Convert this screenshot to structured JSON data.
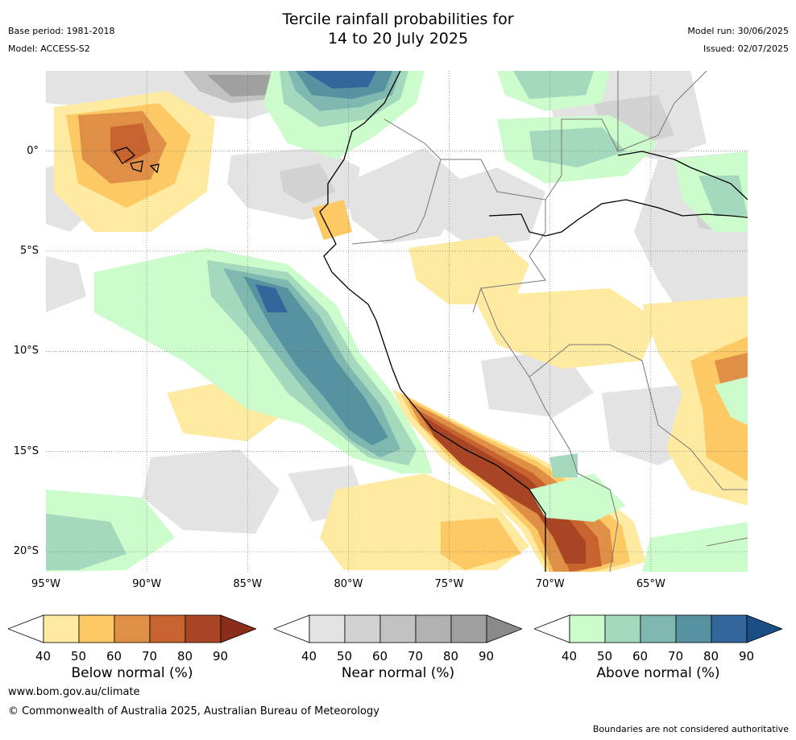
{
  "header": {
    "title_line1": "Tercile rainfall probabilities for",
    "title_line2": "14 to 20 July 2025",
    "base_period": "Base period: 1981-2018",
    "model": "Model: ACCESS-S2",
    "model_run": "Model run: 30/06/2025",
    "issued": "Issued: 02/07/2025"
  },
  "map": {
    "lat_labels": [
      "0°",
      "5°S",
      "10°S",
      "15°S",
      "20°S"
    ],
    "lon_labels": [
      "95°W",
      "90°W",
      "85°W",
      "80°W",
      "75°W",
      "70°W",
      "65°W"
    ],
    "lat_values": [
      0,
      -5,
      -10,
      -15,
      -20
    ],
    "lon_values": [
      -95,
      -90,
      -85,
      -80,
      -75,
      -70,
      -65
    ],
    "extent": {
      "lon": [
        -95,
        -60.2
      ],
      "lat": [
        -21,
        4
      ]
    },
    "colors": {
      "coast": "#000000",
      "borders": "#777777",
      "grid": "#666666"
    }
  },
  "legends": [
    {
      "title": "Below normal (%)",
      "ticks": [
        "40",
        "50",
        "60",
        "70",
        "80",
        "90"
      ],
      "colors": [
        "#ffffff",
        "#feeaa0",
        "#fdc965",
        "#e08f46",
        "#c8632f",
        "#a84525",
        "#8a2d1a"
      ]
    },
    {
      "title": "Near normal (%)",
      "ticks": [
        "40",
        "50",
        "60",
        "70",
        "80",
        "90"
      ],
      "colors": [
        "#ffffff",
        "#e3e3e3",
        "#d2d2d2",
        "#c2c2c2",
        "#b1b1b1",
        "#a0a0a0",
        "#8a8a8a"
      ]
    },
    {
      "title": "Above normal (%)",
      "ticks": [
        "40",
        "50",
        "60",
        "70",
        "80",
        "90"
      ],
      "colors": [
        "#ffffff",
        "#ccfbcc",
        "#a4d9be",
        "#7eb8b0",
        "#5792a0",
        "#33669a",
        "#194e85"
      ]
    }
  ],
  "footer": {
    "website": "www.bom.gov.au/climate",
    "copyright": "© Commonwealth of Australia 2025, Australian Bureau of Meteorology",
    "disclaimer": "Boundaries are not considered authoritative"
  }
}
